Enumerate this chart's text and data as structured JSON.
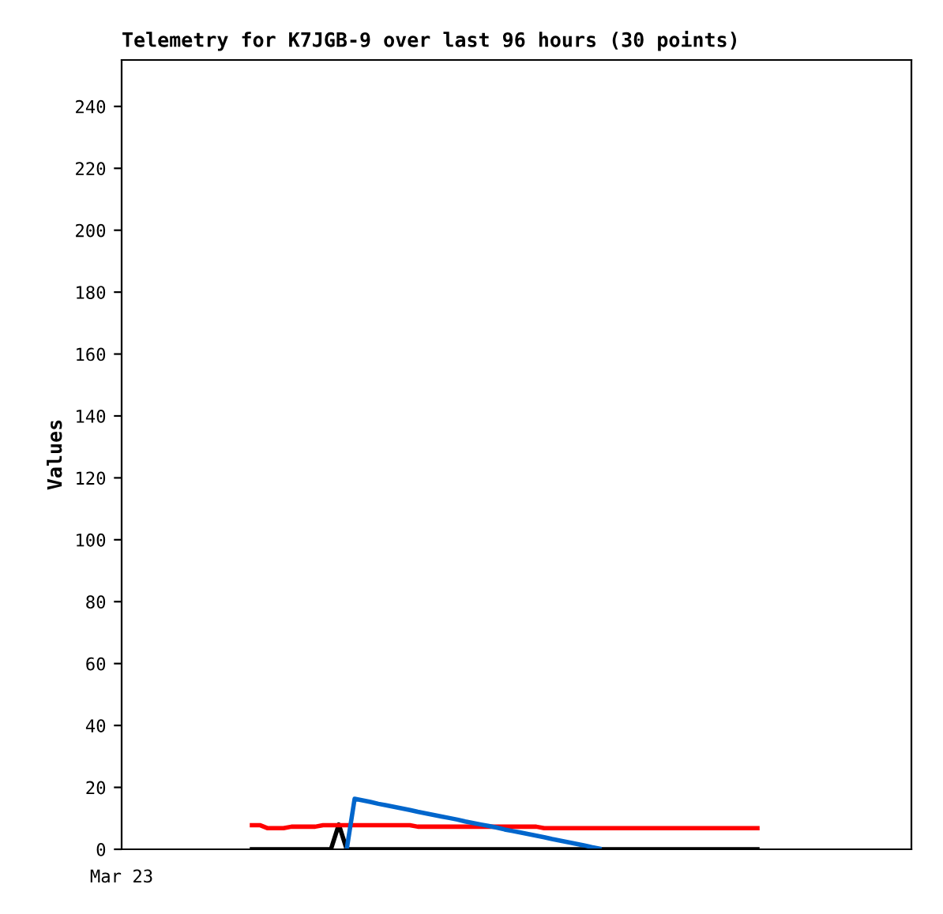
{
  "chart_data": {
    "type": "line",
    "title": "Telemetry for K7JGB-9 over last 96 hours (30 points)",
    "ylabel": "Values",
    "annotations": [
      "Mar 23"
    ],
    "categories": [
      null,
      null,
      null,
      null,
      null,
      null,
      null,
      null,
      null,
      null,
      null,
      null,
      null,
      null,
      null,
      null,
      null,
      null,
      null,
      null,
      null,
      null,
      null,
      null,
      null,
      null,
      null,
      null,
      null,
      null,
      null,
      null,
      null,
      null,
      null,
      null,
      null,
      null,
      null,
      null,
      null,
      null,
      null,
      null,
      null,
      null,
      null,
      null,
      null,
      null,
      null,
      null,
      null,
      null,
      null,
      null,
      null,
      null,
      null,
      null,
      null,
      null,
      null,
      null,
      null,
      null,
      null,
      null,
      null,
      null,
      null,
      null,
      null,
      null,
      null,
      null,
      null,
      null,
      null,
      null,
      null,
      null,
      null,
      null,
      null,
      null,
      null,
      null,
      null,
      null,
      null,
      null,
      null,
      null,
      null,
      null,
      null,
      null,
      null,
      null
    ],
    "ylim": [
      0,
      255
    ],
    "yticks": [
      0,
      20,
      40,
      60,
      80,
      100,
      120,
      140,
      160,
      180,
      200,
      220,
      240
    ],
    "grid": false,
    "legend": false,
    "series": [
      {
        "color": "#000000",
        "values": [
          null,
          null,
          null,
          null,
          null,
          null,
          null,
          null,
          null,
          null,
          null,
          null,
          null,
          null,
          null,
          null,
          0,
          0,
          0,
          0,
          0,
          0,
          0,
          0,
          0,
          0,
          0,
          8,
          0,
          0,
          0,
          0,
          0,
          0,
          0,
          0,
          0,
          0,
          0,
          0,
          0,
          0,
          0,
          0,
          0,
          0,
          0,
          0,
          0,
          0,
          0,
          0,
          0,
          0,
          0,
          0,
          0,
          0,
          0,
          0,
          0,
          0,
          0,
          0,
          0,
          0,
          0,
          0,
          0,
          0,
          0,
          0,
          0,
          0,
          0,
          0,
          0,
          0,
          0,
          0,
          0,
          null,
          null,
          null,
          null,
          null,
          null,
          null,
          null,
          null,
          null,
          null,
          null,
          null,
          null,
          null,
          null,
          null,
          null,
          null
        ]
      },
      {
        "color": "#ff0000",
        "values": [
          null,
          null,
          null,
          null,
          null,
          null,
          null,
          null,
          null,
          null,
          null,
          null,
          null,
          null,
          null,
          null,
          7.8,
          7.8,
          6.8,
          6.8,
          6.8,
          7.3,
          7.3,
          7.3,
          7.3,
          7.8,
          7.8,
          7.8,
          7.8,
          7.8,
          7.8,
          7.8,
          7.8,
          7.8,
          7.8,
          7.8,
          7.8,
          7.3,
          7.3,
          7.3,
          7.3,
          7.3,
          7.3,
          7.3,
          7.3,
          7.3,
          7.3,
          7.3,
          7.3,
          7.3,
          7.3,
          7.3,
          7.3,
          6.8,
          6.8,
          6.8,
          6.8,
          6.8,
          6.8,
          6.8,
          6.8,
          6.8,
          6.8,
          6.8,
          6.8,
          6.8,
          6.8,
          6.8,
          6.8,
          6.8,
          6.8,
          6.8,
          6.8,
          6.8,
          6.8,
          6.8,
          6.8,
          6.8,
          6.8,
          6.8,
          6.8,
          null,
          null,
          null,
          null,
          null,
          null,
          null,
          null,
          null,
          null,
          null,
          null,
          null,
          null,
          null,
          null,
          null,
          null,
          null
        ]
      },
      {
        "color": "#0066cc",
        "values": [
          null,
          null,
          null,
          null,
          null,
          null,
          null,
          null,
          null,
          null,
          null,
          null,
          null,
          null,
          null,
          null,
          null,
          null,
          null,
          null,
          null,
          null,
          null,
          null,
          null,
          null,
          null,
          null,
          0,
          16.3,
          15.8,
          15.3,
          14.7,
          14.2,
          13.7,
          13.2,
          12.7,
          12.1,
          11.6,
          11.1,
          10.6,
          10.1,
          9.6,
          9.0,
          8.5,
          8.0,
          7.5,
          7.0,
          6.4,
          5.9,
          5.4,
          4.9,
          4.4,
          3.9,
          3.3,
          2.8,
          2.3,
          1.8,
          1.3,
          0.7,
          0.2,
          null,
          null,
          null,
          null,
          null,
          null,
          null,
          null,
          null,
          null,
          null,
          null,
          null,
          null,
          null,
          null,
          null,
          null,
          null,
          null,
          null,
          null,
          null,
          null,
          null,
          null,
          null,
          null,
          null,
          null,
          null,
          null,
          null,
          null,
          null,
          null,
          null,
          null,
          null
        ]
      }
    ]
  }
}
